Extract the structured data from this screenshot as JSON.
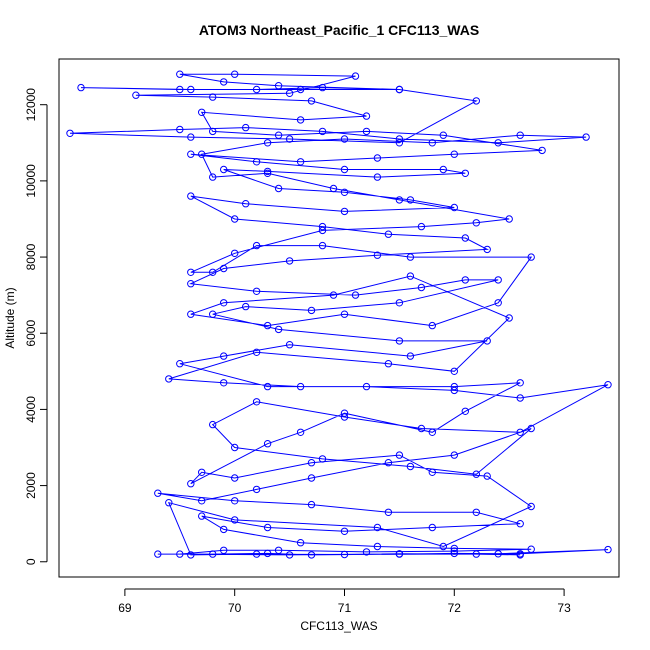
{
  "chart_data": {
    "type": "scatter",
    "title": "ATOM3 Northeast_Pacific_1 CFC113_WAS",
    "xlabel": "CFC113_WAS",
    "ylabel": "Altitude (m)",
    "xlim": [
      68.4,
      73.5
    ],
    "ylim": [
      -400,
      13200
    ],
    "xticks": [
      69,
      70,
      71,
      72,
      73
    ],
    "yticks": [
      0,
      2000,
      4000,
      6000,
      8000,
      10000,
      12000
    ],
    "grid": false,
    "color": "#0000ff",
    "connected": true,
    "series": [
      {
        "values": [
          [
            69.3,
            200
          ],
          [
            69.8,
            200
          ],
          [
            70.3,
            220
          ],
          [
            70.7,
            180
          ],
          [
            71.5,
            200
          ],
          [
            72.0,
            220
          ],
          [
            72.6,
            210
          ],
          [
            73.4,
            320
          ],
          [
            72.4,
            210
          ],
          [
            71.0,
            190
          ],
          [
            70.2,
            200
          ],
          [
            69.6,
            180
          ],
          [
            69.4,
            1550
          ],
          [
            70.0,
            1100
          ],
          [
            71.3,
            900
          ],
          [
            71.9,
            400
          ],
          [
            72.7,
            1450
          ],
          [
            72.3,
            2250
          ],
          [
            71.8,
            2350
          ],
          [
            71.5,
            2800
          ],
          [
            70.7,
            2600
          ],
          [
            70.0,
            2200
          ],
          [
            69.7,
            2350
          ],
          [
            69.6,
            2050
          ],
          [
            70.3,
            3100
          ],
          [
            70.6,
            3400
          ],
          [
            71.0,
            3900
          ],
          [
            71.8,
            3400
          ],
          [
            72.1,
            3950
          ],
          [
            72.6,
            4700
          ],
          [
            72.0,
            4600
          ],
          [
            70.6,
            4600
          ],
          [
            69.9,
            4700
          ],
          [
            69.4,
            4800
          ],
          [
            70.2,
            5500
          ],
          [
            71.4,
            5200
          ],
          [
            72.0,
            5000
          ],
          [
            72.5,
            6400
          ],
          [
            71.6,
            7500
          ],
          [
            70.9,
            7000
          ],
          [
            69.9,
            6800
          ],
          [
            69.6,
            6500
          ],
          [
            70.3,
            6200
          ],
          [
            71.0,
            6500
          ],
          [
            71.8,
            6200
          ],
          [
            72.4,
            6800
          ],
          [
            72.7,
            8000
          ],
          [
            71.6,
            8000
          ],
          [
            70.8,
            8300
          ],
          [
            70.2,
            8300
          ],
          [
            69.8,
            7600
          ],
          [
            69.6,
            7600
          ],
          [
            70.0,
            8100
          ],
          [
            70.8,
            8700
          ],
          [
            71.7,
            8800
          ],
          [
            72.2,
            8900
          ],
          [
            72.5,
            9000
          ],
          [
            71.5,
            9500
          ],
          [
            70.9,
            9800
          ],
          [
            70.3,
            10200
          ],
          [
            69.8,
            10100
          ],
          [
            69.7,
            10700
          ],
          [
            70.3,
            11000
          ],
          [
            71.0,
            11100
          ],
          [
            71.8,
            11000
          ],
          [
            72.6,
            11200
          ],
          [
            73.2,
            11150
          ],
          [
            72.4,
            11000
          ],
          [
            71.5,
            11100
          ],
          [
            70.8,
            11300
          ],
          [
            70.1,
            11400
          ],
          [
            69.5,
            11350
          ],
          [
            68.5,
            11250
          ],
          [
            69.6,
            11150
          ],
          [
            70.5,
            11100
          ],
          [
            71.5,
            11000
          ],
          [
            72.2,
            12100
          ],
          [
            71.5,
            12400
          ],
          [
            70.8,
            12450
          ],
          [
            70.2,
            12400
          ],
          [
            69.6,
            12400
          ],
          [
            68.6,
            12450
          ],
          [
            69.5,
            12400
          ],
          [
            70.6,
            12400
          ],
          [
            71.5,
            12400
          ],
          [
            70.4,
            12500
          ],
          [
            69.9,
            12600
          ],
          [
            69.5,
            12800
          ],
          [
            70.0,
            12800
          ],
          [
            71.1,
            12750
          ],
          [
            70.5,
            12300
          ],
          [
            69.1,
            12250
          ],
          [
            69.8,
            12200
          ],
          [
            70.7,
            12100
          ],
          [
            71.2,
            11700
          ],
          [
            70.6,
            11600
          ],
          [
            69.7,
            11800
          ],
          [
            69.8,
            11300
          ],
          [
            70.4,
            11200
          ],
          [
            71.2,
            11300
          ],
          [
            71.9,
            11200
          ],
          [
            72.8,
            10800
          ],
          [
            72.0,
            10700
          ],
          [
            71.3,
            10600
          ],
          [
            70.6,
            10500
          ],
          [
            69.6,
            10700
          ],
          [
            70.2,
            10500
          ],
          [
            71.0,
            10300
          ],
          [
            71.9,
            10300
          ],
          [
            72.1,
            10200
          ],
          [
            71.3,
            10100
          ],
          [
            70.3,
            10250
          ],
          [
            69.9,
            10300
          ],
          [
            70.4,
            9800
          ],
          [
            71.0,
            9700
          ],
          [
            71.6,
            9500
          ],
          [
            72.0,
            9300
          ],
          [
            71.0,
            9200
          ],
          [
            70.1,
            9400
          ],
          [
            69.6,
            9600
          ],
          [
            70.0,
            9000
          ],
          [
            70.8,
            8800
          ],
          [
            71.4,
            8600
          ],
          [
            72.1,
            8500
          ],
          [
            72.3,
            8200
          ],
          [
            71.3,
            8050
          ],
          [
            70.5,
            7900
          ],
          [
            69.9,
            7700
          ],
          [
            69.6,
            7300
          ],
          [
            70.2,
            7100
          ],
          [
            71.1,
            7000
          ],
          [
            71.7,
            7200
          ],
          [
            72.1,
            7400
          ],
          [
            72.4,
            7400
          ],
          [
            71.5,
            6800
          ],
          [
            70.7,
            6600
          ],
          [
            70.1,
            6700
          ],
          [
            69.8,
            6500
          ],
          [
            70.4,
            6100
          ],
          [
            71.5,
            5800
          ],
          [
            72.3,
            5800
          ],
          [
            71.6,
            5400
          ],
          [
            70.5,
            5700
          ],
          [
            69.9,
            5400
          ],
          [
            69.5,
            5200
          ],
          [
            70.3,
            4600
          ],
          [
            71.2,
            4600
          ],
          [
            72.0,
            4500
          ],
          [
            72.6,
            4300
          ],
          [
            73.4,
            4650
          ],
          [
            72.6,
            3400
          ],
          [
            71.7,
            3500
          ],
          [
            71.0,
            3800
          ],
          [
            70.2,
            4200
          ],
          [
            69.8,
            3600
          ],
          [
            70.0,
            3000
          ],
          [
            70.8,
            2700
          ],
          [
            71.6,
            2500
          ],
          [
            72.2,
            2300
          ],
          [
            72.7,
            3500
          ],
          [
            72.0,
            2800
          ],
          [
            71.4,
            2600
          ],
          [
            70.7,
            2200
          ],
          [
            70.2,
            1900
          ],
          [
            69.7,
            1600
          ],
          [
            69.3,
            1800
          ],
          [
            70.0,
            1600
          ],
          [
            70.7,
            1500
          ],
          [
            71.4,
            1300
          ],
          [
            72.2,
            1300
          ],
          [
            72.6,
            1000
          ],
          [
            71.8,
            900
          ],
          [
            71.0,
            800
          ],
          [
            70.3,
            900
          ],
          [
            69.7,
            1200
          ],
          [
            69.9,
            850
          ],
          [
            70.6,
            500
          ],
          [
            71.3,
            400
          ],
          [
            72.0,
            350
          ],
          [
            72.7,
            330
          ],
          [
            72.0,
            280
          ],
          [
            71.2,
            260
          ],
          [
            70.4,
            300
          ],
          [
            69.9,
            300
          ],
          [
            69.5,
            200
          ],
          [
            70.5,
            180
          ],
          [
            71.5,
            210
          ],
          [
            72.2,
            200
          ],
          [
            72.6,
            180
          ]
        ]
      }
    ]
  }
}
